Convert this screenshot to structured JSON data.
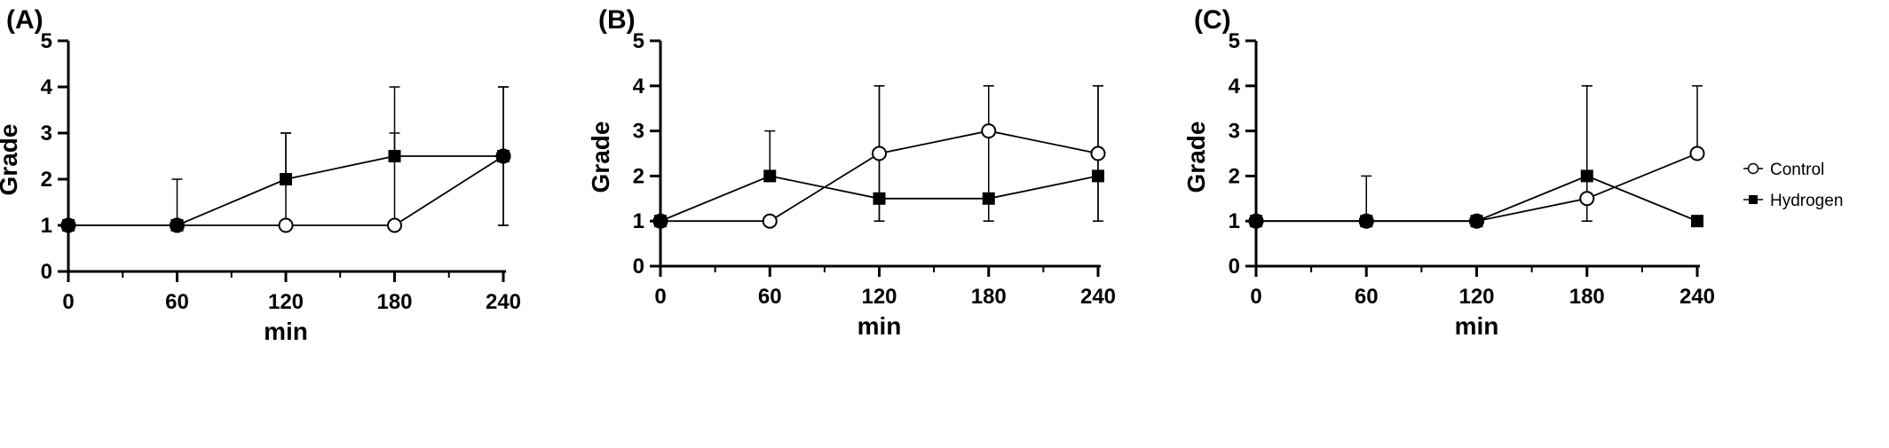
{
  "legend": {
    "items": [
      {
        "label": "Control",
        "marker": "open-circle"
      },
      {
        "label": "Hydrogen",
        "marker": "filled-square"
      }
    ],
    "position": "right"
  },
  "chart_data": [
    {
      "panel_label": "(A)",
      "type": "line",
      "xlabel": "min",
      "ylabel": "Grade",
      "x": [
        0,
        60,
        120,
        180,
        240
      ],
      "x_ticks": [
        "0",
        "60",
        "120",
        "180",
        "240"
      ],
      "y_ticks": [
        "0",
        "1",
        "2",
        "3",
        "4",
        "5"
      ],
      "xlim": [
        0,
        240
      ],
      "ylim": [
        0,
        5
      ],
      "series": [
        {
          "name": "Control",
          "marker": "open-circle",
          "values": [
            1,
            1,
            1,
            1,
            2.5
          ],
          "upper": [
            null,
            2,
            3,
            3,
            4
          ],
          "lower": [
            null,
            null,
            null,
            null,
            1
          ]
        },
        {
          "name": "Hydrogen",
          "marker": "filled-square",
          "values": [
            1,
            1,
            2,
            2.5,
            2.5
          ],
          "upper": [
            null,
            null,
            3,
            4,
            4
          ],
          "lower": [
            null,
            null,
            null,
            null,
            1
          ]
        }
      ]
    },
    {
      "panel_label": "(B)",
      "type": "line",
      "xlabel": "min",
      "ylabel": "Grade",
      "x": [
        0,
        60,
        120,
        180,
        240
      ],
      "x_ticks": [
        "0",
        "60",
        "120",
        "180",
        "240"
      ],
      "y_ticks": [
        "0",
        "1",
        "2",
        "3",
        "4",
        "5"
      ],
      "xlim": [
        0,
        240
      ],
      "ylim": [
        0,
        5
      ],
      "series": [
        {
          "name": "Control",
          "marker": "open-circle",
          "values": [
            1,
            1,
            2.5,
            3,
            2.5
          ],
          "upper": [
            null,
            null,
            4,
            4,
            4
          ],
          "lower": [
            null,
            null,
            1,
            1,
            1
          ]
        },
        {
          "name": "Hydrogen",
          "marker": "filled-square",
          "values": [
            1,
            2,
            1.5,
            1.5,
            2
          ],
          "upper": [
            null,
            3,
            4,
            4,
            4
          ],
          "lower": [
            null,
            null,
            1,
            1,
            1
          ]
        }
      ]
    },
    {
      "panel_label": "(C)",
      "type": "line",
      "xlabel": "min",
      "ylabel": "Grade",
      "x": [
        0,
        60,
        120,
        180,
        240
      ],
      "x_ticks": [
        "0",
        "60",
        "120",
        "180",
        "240"
      ],
      "y_ticks": [
        "0",
        "1",
        "2",
        "3",
        "4",
        "5"
      ],
      "xlim": [
        0,
        240
      ],
      "ylim": [
        0,
        5
      ],
      "series": [
        {
          "name": "Control",
          "marker": "open-circle",
          "values": [
            1,
            1,
            1,
            1.5,
            2.5
          ],
          "upper": [
            null,
            2,
            null,
            4,
            4
          ],
          "lower": [
            null,
            null,
            null,
            1,
            null
          ]
        },
        {
          "name": "Hydrogen",
          "marker": "filled-square",
          "values": [
            1,
            1,
            1,
            2,
            1
          ],
          "upper": [
            null,
            null,
            null,
            4,
            null
          ],
          "lower": [
            null,
            null,
            null,
            1,
            null
          ]
        }
      ]
    }
  ]
}
